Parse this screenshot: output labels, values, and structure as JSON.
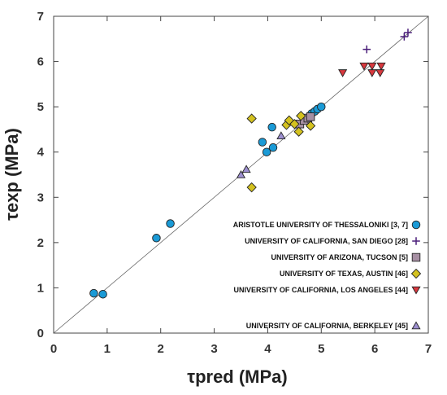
{
  "chart_data": {
    "type": "scatter",
    "xlabel": "τpred (MPa)",
    "ylabel": "τexp (MPa)",
    "xlim": [
      0,
      7
    ],
    "ylim": [
      0,
      7
    ],
    "xticks": [
      0,
      1,
      2,
      3,
      4,
      5,
      6,
      7
    ],
    "yticks": [
      0,
      1,
      2,
      3,
      4,
      5,
      6,
      7
    ],
    "reference_line": "y = x",
    "grid": false,
    "legend_position": "bottom-right",
    "series": [
      {
        "name": "ARISTOTLE UNIVERSITY OF THESSALONIKI [3, 7]",
        "marker": "circle",
        "color": "#1a9ad6",
        "points": [
          [
            0.75,
            0.88
          ],
          [
            0.92,
            0.86
          ],
          [
            1.92,
            2.1
          ],
          [
            2.18,
            2.42
          ],
          [
            3.9,
            4.22
          ],
          [
            4.08,
            4.55
          ],
          [
            3.98,
            4.0
          ],
          [
            4.1,
            4.1
          ],
          [
            4.82,
            4.85
          ],
          [
            4.88,
            4.9
          ],
          [
            4.93,
            4.95
          ],
          [
            5.0,
            5.0
          ]
        ]
      },
      {
        "name": "UNIVERSITY OF CALIFORNIA, SAN DIEGO [28]",
        "marker": "plus",
        "color": "#4b1f7a",
        "points": [
          [
            5.85,
            6.27
          ],
          [
            6.55,
            6.55
          ],
          [
            6.62,
            6.64
          ]
        ]
      },
      {
        "name": "UNIVERSITY OF ARIZONA, TUCSON [5]",
        "marker": "square",
        "color": "#a68fa3",
        "points": [
          [
            4.6,
            4.62
          ],
          [
            4.68,
            4.7
          ],
          [
            4.75,
            4.75
          ],
          [
            4.8,
            4.78
          ]
        ]
      },
      {
        "name": "UNIVERSITY OF TEXAS, AUSTIN [46]",
        "marker": "diamond",
        "color": "#d4c21f",
        "points": [
          [
            3.7,
            4.74
          ],
          [
            3.7,
            3.22
          ],
          [
            4.35,
            4.6
          ],
          [
            4.4,
            4.7
          ],
          [
            4.5,
            4.62
          ],
          [
            4.58,
            4.45
          ],
          [
            4.62,
            4.8
          ],
          [
            4.8,
            4.58
          ]
        ]
      },
      {
        "name": "UNIVERSITY OF CALIFORNIA, LOS ANGELES [44]",
        "marker": "triangle-down",
        "color": "#d8383e",
        "points": [
          [
            5.4,
            5.75
          ],
          [
            5.8,
            5.9
          ],
          [
            5.95,
            5.9
          ],
          [
            5.95,
            5.75
          ],
          [
            6.12,
            5.9
          ],
          [
            6.1,
            5.75
          ]
        ]
      },
      {
        "name": "UNIVERSITY OF CALIFORNIA, BERKELEY [45]",
        "marker": "triangle-up",
        "color": "#9d8fd0",
        "points": [
          [
            3.5,
            3.5
          ],
          [
            3.6,
            3.62
          ],
          [
            4.25,
            4.36
          ]
        ]
      }
    ]
  }
}
